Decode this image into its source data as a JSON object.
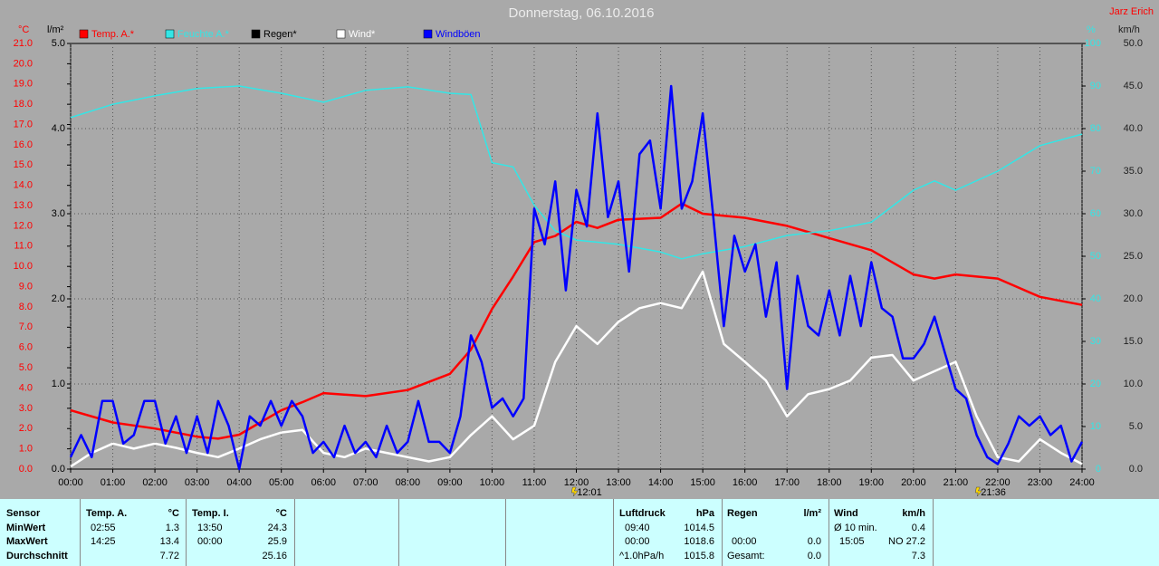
{
  "chart_data": {
    "type": "line",
    "title": "Donnerstag, 06.10.2016",
    "author": "Jarz Erich",
    "xlim": [
      0,
      24
    ],
    "xticks": [
      {
        "value": 0,
        "label": "00:00"
      },
      {
        "value": 1,
        "label": "01:00"
      },
      {
        "value": 2,
        "label": "02:00"
      },
      {
        "value": 3,
        "label": "03:00"
      },
      {
        "value": 4,
        "label": "04:00"
      },
      {
        "value": 5,
        "label": "05:00"
      },
      {
        "value": 6,
        "label": "06:00"
      },
      {
        "value": 7,
        "label": "07:00"
      },
      {
        "value": 8,
        "label": "08:00"
      },
      {
        "value": 9,
        "label": "09:00"
      },
      {
        "value": 10,
        "label": "10:00"
      },
      {
        "value": 11,
        "label": "11:00"
      },
      {
        "value": 12,
        "label": "12:00"
      },
      {
        "value": 13,
        "label": "13:00"
      },
      {
        "value": 14,
        "label": "14:00"
      },
      {
        "value": 15,
        "label": "15:00"
      },
      {
        "value": 16,
        "label": "16:00"
      },
      {
        "value": 17,
        "label": "17:00"
      },
      {
        "value": 18,
        "label": "18:00"
      },
      {
        "value": 19,
        "label": "19:00"
      },
      {
        "value": 20,
        "label": "20:00"
      },
      {
        "value": 21,
        "label": "21:00"
      },
      {
        "value": 22,
        "label": "22:00"
      },
      {
        "value": 23,
        "label": "23:00"
      },
      {
        "value": 24,
        "label": "24:00"
      }
    ],
    "grid": true,
    "axes": {
      "temp": {
        "unit": "°C",
        "color": "#ff0000",
        "lim": [
          0,
          21
        ],
        "ticks": [
          {
            "value": 0,
            "label": "0.0"
          },
          {
            "value": 1,
            "label": "1.0"
          },
          {
            "value": 2,
            "label": "2.0"
          },
          {
            "value": 3,
            "label": "3.0"
          },
          {
            "value": 4,
            "label": "4.0"
          },
          {
            "value": 5,
            "label": "5.0"
          },
          {
            "value": 6,
            "label": "6.0"
          },
          {
            "value": 7,
            "label": "7.0"
          },
          {
            "value": 8,
            "label": "8.0"
          },
          {
            "value": 9,
            "label": "9.0"
          },
          {
            "value": 10,
            "label": "10.0"
          },
          {
            "value": 11,
            "label": "11.0"
          },
          {
            "value": 12,
            "label": "12.0"
          },
          {
            "value": 13,
            "label": "13.0"
          },
          {
            "value": 14,
            "label": "14.0"
          },
          {
            "value": 15,
            "label": "15.0"
          },
          {
            "value": 16,
            "label": "16.0"
          },
          {
            "value": 17,
            "label": "17.0"
          },
          {
            "value": 18,
            "label": "18.0"
          },
          {
            "value": 19,
            "label": "19.0"
          },
          {
            "value": 20,
            "label": "20.0"
          },
          {
            "value": 21,
            "label": "21.0"
          }
        ]
      },
      "rain": {
        "unit": "l/m²",
        "color": "#000000",
        "lim": [
          0,
          5
        ],
        "ticks": [
          {
            "value": 0,
            "label": "0.0"
          },
          {
            "value": 1,
            "label": "1.0"
          },
          {
            "value": 2,
            "label": "2.0"
          },
          {
            "value": 3,
            "label": "3.0"
          },
          {
            "value": 4,
            "label": "4.0"
          },
          {
            "value": 5,
            "label": "5.0"
          }
        ]
      },
      "humidity": {
        "unit": "%",
        "color": "#33e6e6",
        "lim": [
          0,
          100
        ],
        "ticks": [
          0,
          10,
          20,
          30,
          40,
          50,
          60,
          70,
          80,
          90,
          100
        ]
      },
      "wind": {
        "unit": "km/h",
        "color": "#202020",
        "lim": [
          0,
          50
        ],
        "ticks": [
          {
            "value": 0,
            "label": "0.0"
          },
          {
            "value": 5,
            "label": "5.0"
          },
          {
            "value": 10,
            "label": "10.0"
          },
          {
            "value": 15,
            "label": "15.0"
          },
          {
            "value": 20,
            "label": "20.0"
          },
          {
            "value": 25,
            "label": "25.0"
          },
          {
            "value": 30,
            "label": "30.0"
          },
          {
            "value": 35,
            "label": "35.0"
          },
          {
            "value": 40,
            "label": "40.0"
          },
          {
            "value": 45,
            "label": "45.0"
          },
          {
            "value": 50,
            "label": "50.0"
          }
        ]
      }
    },
    "series": [
      {
        "name": "Temp. A.*",
        "color": "#ff0000",
        "axis": "temp",
        "x": [
          0,
          1,
          2,
          3,
          3.5,
          4,
          4.5,
          5,
          5.5,
          6,
          7,
          8,
          9,
          9.5,
          10,
          10.5,
          11,
          11.5,
          12,
          12.5,
          13,
          14,
          14.5,
          15,
          16,
          17,
          18,
          19,
          20,
          20.5,
          21,
          22,
          23,
          24
        ],
        "values": [
          2.9,
          2.3,
          2.0,
          1.6,
          1.5,
          1.7,
          2.3,
          2.9,
          3.3,
          3.75,
          3.6,
          3.9,
          4.7,
          5.9,
          7.9,
          9.5,
          11.2,
          11.5,
          12.2,
          11.9,
          12.3,
          12.4,
          13.1,
          12.6,
          12.4,
          12.0,
          11.4,
          10.8,
          9.6,
          9.4,
          9.6,
          9.4,
          8.5,
          8.1
        ]
      },
      {
        "name": "Feuchte A.*",
        "color": "#33e6e6",
        "axis": "humidity",
        "x": [
          0,
          1,
          2,
          3,
          4,
          5,
          6,
          7,
          8,
          9,
          9.5,
          10,
          10.5,
          11,
          11.5,
          12,
          13,
          14,
          14.5,
          15,
          16,
          17,
          18,
          19,
          20,
          20.5,
          21,
          22,
          23,
          24
        ],
        "values": [
          82.6,
          85.7,
          87.7,
          89.4,
          90,
          88.3,
          86.2,
          89,
          89.8,
          88.3,
          88,
          72,
          71,
          62,
          56,
          53.8,
          52.8,
          51,
          49.4,
          50.6,
          52.3,
          54.9,
          56,
          58,
          65.5,
          67.7,
          65.5,
          70,
          76,
          78.7
        ]
      },
      {
        "name": "Regen*",
        "color": "#000000",
        "axis": "rain"
      },
      {
        "name": "Wind*",
        "color": "#ffffff",
        "axis": "wind",
        "x": [
          0,
          0.5,
          1,
          1.5,
          2,
          2.5,
          3,
          3.5,
          4,
          4.5,
          5,
          5.5,
          6,
          6.5,
          7,
          7.5,
          8,
          8.5,
          9,
          9.5,
          10,
          10.5,
          11,
          11.5,
          12,
          12.5,
          13,
          13.5,
          14,
          14.5,
          15,
          15.5,
          16,
          16.5,
          17,
          17.5,
          18,
          18.5,
          19,
          19.5,
          20,
          20.5,
          21,
          21.5,
          22,
          22.5,
          23,
          23.5,
          24
        ],
        "values": [
          0.3,
          1.9,
          3,
          2.4,
          3,
          2.5,
          1.9,
          1.4,
          2.4,
          3.5,
          4.3,
          4.6,
          1.9,
          1.4,
          2.4,
          1.9,
          1.4,
          0.9,
          1.4,
          4,
          6.2,
          3.5,
          5.1,
          12.6,
          16.8,
          14.7,
          17.3,
          18.9,
          19.5,
          18.9,
          23.2,
          14.7,
          12.6,
          10.4,
          6.2,
          8.8,
          9.4,
          10.4,
          13.1,
          13.4,
          10.4,
          11.5,
          12.6,
          6.2,
          1.4,
          0.9,
          3.5,
          1.9,
          0.6
        ]
      },
      {
        "name": "Windböen",
        "color": "#0000ff",
        "axis": "wind",
        "x": [
          0,
          0.25,
          0.5,
          0.75,
          1,
          1.25,
          1.5,
          1.75,
          2,
          2.25,
          2.5,
          2.75,
          3,
          3.25,
          3.5,
          3.75,
          4,
          4.25,
          4.5,
          4.75,
          5,
          5.25,
          5.5,
          5.75,
          6,
          6.25,
          6.5,
          6.75,
          7,
          7.25,
          7.5,
          7.75,
          8,
          8.25,
          8.5,
          8.75,
          9,
          9.25,
          9.5,
          9.75,
          10,
          10.25,
          10.5,
          10.75,
          11,
          11.25,
          11.5,
          11.75,
          12,
          12.25,
          12.5,
          12.75,
          13,
          13.25,
          13.5,
          13.75,
          14,
          14.25,
          14.5,
          14.75,
          15,
          15.25,
          15.5,
          15.75,
          16,
          16.25,
          16.5,
          16.75,
          17,
          17.25,
          17.5,
          17.75,
          18,
          18.25,
          18.5,
          18.75,
          19,
          19.25,
          19.5,
          19.75,
          20,
          20.25,
          20.5,
          20.75,
          21,
          21.25,
          21.5,
          21.75,
          22,
          22.25,
          22.5,
          22.75,
          23,
          23.25,
          23.5,
          23.75,
          24
        ],
        "values": [
          1.4,
          4,
          1.4,
          8,
          8,
          3,
          4,
          8,
          8,
          3,
          6.2,
          1.9,
          6.2,
          1.9,
          8,
          5.1,
          0,
          6.2,
          5.1,
          8,
          5.1,
          8,
          6.2,
          1.9,
          3.2,
          1.4,
          5.1,
          1.9,
          3.2,
          1.4,
          5.1,
          1.9,
          3.2,
          8,
          3.2,
          3.2,
          1.9,
          6.2,
          15.7,
          12.6,
          7.2,
          8.3,
          6.2,
          8.3,
          30.6,
          26.4,
          33.8,
          21,
          32.8,
          28.5,
          41.8,
          29.6,
          33.8,
          23.2,
          37,
          38.6,
          30.6,
          45,
          30.6,
          33.8,
          41.8,
          29.6,
          16.8,
          27.4,
          23.2,
          26.4,
          17.9,
          24.3,
          9.4,
          22.7,
          16.8,
          15.7,
          21,
          15.7,
          22.7,
          16.8,
          24.3,
          18.9,
          17.9,
          13,
          13,
          14.7,
          17.9,
          13.6,
          9.4,
          8.3,
          4,
          1.4,
          0.6,
          3,
          6.2,
          5.1,
          6.2,
          4,
          5.1,
          0.9,
          3.2
        ]
      }
    ],
    "markers": [
      {
        "x": 12.0167,
        "label": "12:01"
      },
      {
        "x": 21.6,
        "label": "21:36"
      }
    ]
  },
  "summary": {
    "sensor": {
      "header": "Sensor",
      "rows": [
        "MinWert",
        "MaxWert",
        "Durchschnitt"
      ]
    },
    "temp_a": {
      "header": "Temp. A.",
      "unit": "°C",
      "min_time": "02:55",
      "min": "1.3",
      "max_time": "14:25",
      "max": "13.4",
      "avg": "7.72"
    },
    "temp_i": {
      "header": "Temp. I.",
      "unit": "°C",
      "min_time": "13:50",
      "min": "24.3",
      "max_time": "00:00",
      "max": "25.9",
      "avg": "25.16"
    },
    "pressure": {
      "header": "Luftdruck",
      "unit": "hPa",
      "min_time": "09:40",
      "min": "1014.5",
      "max_time": "00:00",
      "max": "1018.6",
      "trend": "^1.0hPa/h",
      "avg": "1015.8"
    },
    "rain": {
      "header": "Regen",
      "unit": "l/m²",
      "max_time": "00:00",
      "max": "0.0",
      "total_label": "Gesamt:",
      "total": "0.0"
    },
    "wind": {
      "header": "Wind",
      "unit": "km/h",
      "avg_label": "Ø 10 min.",
      "avg": "0.4",
      "max_time": "15:05",
      "max": "NO 27.2",
      "gust_avg": "7.3"
    }
  }
}
